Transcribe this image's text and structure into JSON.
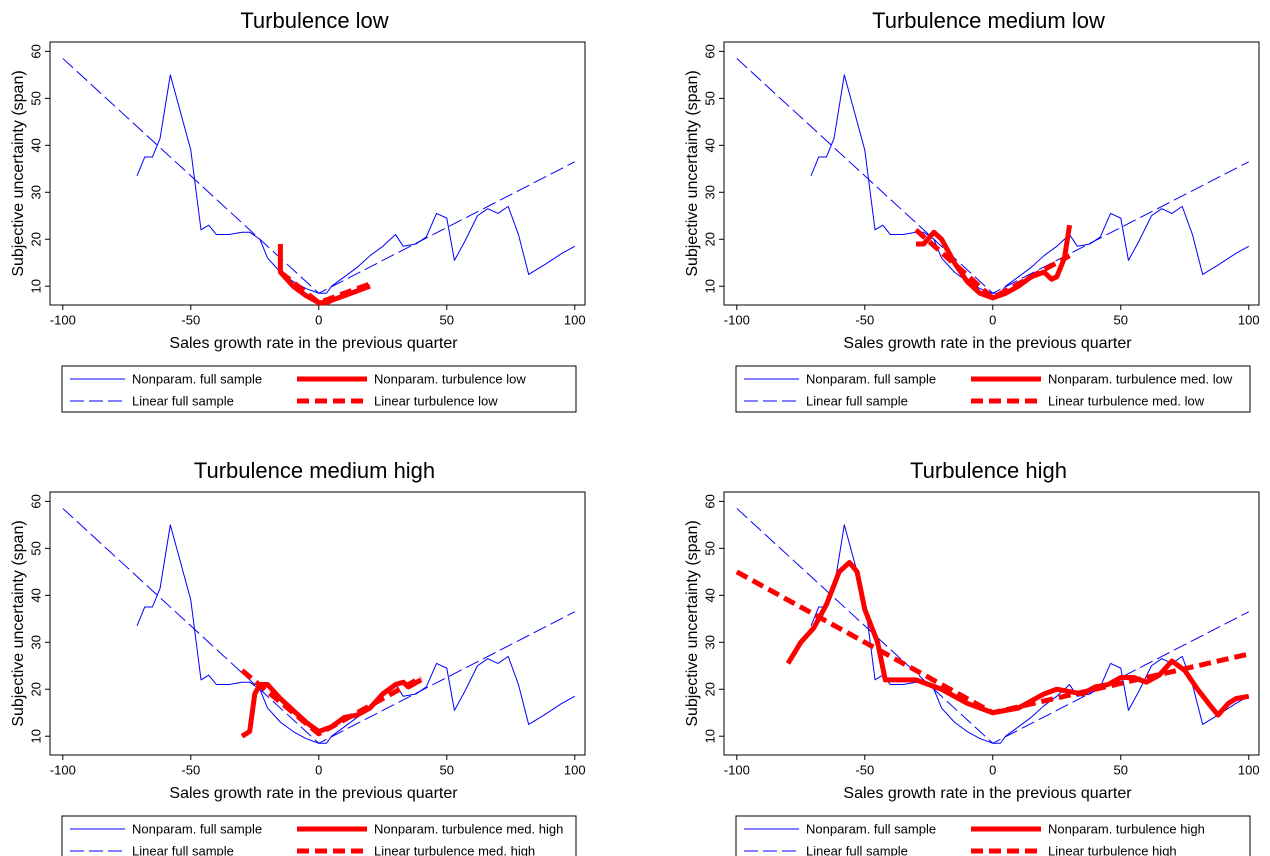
{
  "chart_data": [
    {
      "type": "line",
      "title": "Turbulence low",
      "x_label": "Sales growth rate in the previous quarter",
      "y_label": "Subjective uncertainty (span)",
      "xlim": [
        -105,
        104
      ],
      "ylim": [
        6,
        62
      ],
      "xticks": [
        -100,
        -50,
        0,
        50,
        100
      ],
      "yticks": [
        10,
        20,
        30,
        40,
        50,
        60
      ],
      "series": [
        {
          "name": "Nonparam. full sample",
          "color": "#0000ff",
          "width": 1,
          "dash": "none",
          "x": [
            -71,
            -68,
            -65,
            -62,
            -58,
            -55,
            -53,
            -50,
            -46,
            -43,
            -40,
            -35,
            -30,
            -27,
            -23,
            -20,
            -15,
            -10,
            -5,
            0,
            3,
            5,
            10,
            15,
            20,
            25,
            30,
            33,
            38,
            42,
            46,
            50,
            53,
            57,
            62,
            66,
            70,
            74,
            78,
            82,
            88,
            95,
            100
          ],
          "values": [
            33.5,
            37.5,
            37.5,
            41.5,
            55,
            49,
            45,
            39,
            22,
            23,
            21,
            21,
            21.5,
            21.5,
            20,
            16,
            13,
            11,
            9.5,
            8.5,
            8.5,
            10,
            12,
            14,
            16.5,
            18.5,
            21,
            18.5,
            19,
            20.5,
            25.5,
            24.5,
            15.5,
            19.5,
            25,
            26.5,
            25.5,
            27,
            21,
            12.5,
            14.5,
            17,
            18.5
          ]
        },
        {
          "name": "Linear full sample",
          "color": "#0000ff",
          "width": 1,
          "dash": "14,5",
          "x": [
            -100,
            0,
            100
          ],
          "values": [
            58.5,
            8.5,
            36.5
          ]
        },
        {
          "name": "Nonparam. turbulence low",
          "color": "#ff0000",
          "width": 5,
          "dash": "none",
          "x": [
            -15,
            -15,
            -10,
            -5,
            0,
            3,
            5,
            10,
            15,
            20
          ],
          "values": [
            19,
            13,
            10,
            8,
            6.5,
            6.5,
            7,
            8,
            9,
            10
          ]
        },
        {
          "name": "Linear turbulence low",
          "color": "#ff0000",
          "width": 5,
          "dash": "12,6",
          "x": [
            -15,
            0,
            20
          ],
          "values": [
            13,
            6.5,
            10.5
          ]
        }
      ]
    },
    {
      "type": "line",
      "title": "Turbulence medium low",
      "x_label": "Sales growth rate in the previous quarter",
      "y_label": "Subjective uncertainty (span)",
      "xlim": [
        -105,
        104
      ],
      "ylim": [
        6,
        62
      ],
      "xticks": [
        -100,
        -50,
        0,
        50,
        100
      ],
      "yticks": [
        10,
        20,
        30,
        40,
        50,
        60
      ],
      "series": [
        {
          "name": "Nonparam. full sample",
          "color": "#0000ff",
          "width": 1,
          "dash": "none",
          "x": [
            -71,
            -68,
            -65,
            -62,
            -58,
            -55,
            -53,
            -50,
            -46,
            -43,
            -40,
            -35,
            -30,
            -27,
            -23,
            -20,
            -15,
            -10,
            -5,
            0,
            3,
            5,
            10,
            15,
            20,
            25,
            30,
            33,
            38,
            42,
            46,
            50,
            53,
            57,
            62,
            66,
            70,
            74,
            78,
            82,
            88,
            95,
            100
          ],
          "values": [
            33.5,
            37.5,
            37.5,
            41.5,
            55,
            49,
            45,
            39,
            22,
            23,
            21,
            21,
            21.5,
            21.5,
            20,
            16,
            13,
            11,
            9.5,
            8.5,
            8.5,
            10,
            12,
            14,
            16.5,
            18.5,
            21,
            18.5,
            19,
            20.5,
            25.5,
            24.5,
            15.5,
            19.5,
            25,
            26.5,
            25.5,
            27,
            21,
            12.5,
            14.5,
            17,
            18.5
          ]
        },
        {
          "name": "Linear full sample",
          "color": "#0000ff",
          "width": 1,
          "dash": "14,5",
          "x": [
            -100,
            0,
            100
          ],
          "values": [
            58.5,
            8.5,
            36.5
          ]
        },
        {
          "name": "Nonparam. turbulence med. low",
          "color": "#ff0000",
          "width": 5,
          "dash": "none",
          "x": [
            -30,
            -27,
            -23,
            -20,
            -15,
            -10,
            -5,
            0,
            5,
            10,
            15,
            20,
            23,
            25,
            28,
            30
          ],
          "values": [
            19,
            19,
            21.5,
            20,
            15,
            11,
            8.5,
            7.5,
            8.5,
            10,
            12,
            13,
            11.5,
            12,
            16,
            23
          ]
        },
        {
          "name": "Linear turbulence med. low",
          "color": "#ff0000",
          "width": 5,
          "dash": "12,6",
          "x": [
            -30,
            0,
            30
          ],
          "values": [
            22,
            7.5,
            16.5
          ]
        }
      ]
    },
    {
      "type": "line",
      "title": "Turbulence medium high",
      "x_label": "Sales growth rate in the previous quarter",
      "y_label": "Subjective uncertainty (span)",
      "xlim": [
        -105,
        104
      ],
      "ylim": [
        6,
        62
      ],
      "xticks": [
        -100,
        -50,
        0,
        50,
        100
      ],
      "yticks": [
        10,
        20,
        30,
        40,
        50,
        60
      ],
      "series": [
        {
          "name": "Nonparam. full sample",
          "color": "#0000ff",
          "width": 1,
          "dash": "none",
          "x": [
            -71,
            -68,
            -65,
            -62,
            -58,
            -55,
            -53,
            -50,
            -46,
            -43,
            -40,
            -35,
            -30,
            -27,
            -23,
            -20,
            -15,
            -10,
            -5,
            0,
            3,
            5,
            10,
            15,
            20,
            25,
            30,
            33,
            38,
            42,
            46,
            50,
            53,
            57,
            62,
            66,
            70,
            74,
            78,
            82,
            88,
            95,
            100
          ],
          "values": [
            33.5,
            37.5,
            37.5,
            41.5,
            55,
            49,
            45,
            39,
            22,
            23,
            21,
            21,
            21.5,
            21.5,
            20,
            16,
            13,
            11,
            9.5,
            8.5,
            8.5,
            10,
            12,
            14,
            16.5,
            18.5,
            21,
            18.5,
            19,
            20.5,
            25.5,
            24.5,
            15.5,
            19.5,
            25,
            26.5,
            25.5,
            27,
            21,
            12.5,
            14.5,
            17,
            18.5
          ]
        },
        {
          "name": "Linear full sample",
          "color": "#0000ff",
          "width": 1,
          "dash": "14,5",
          "x": [
            -100,
            0,
            100
          ],
          "values": [
            58.5,
            8.5,
            36.5
          ]
        },
        {
          "name": "Nonparam. turbulence med. high",
          "color": "#ff0000",
          "width": 5,
          "dash": "none",
          "x": [
            -30,
            -27,
            -25,
            -23,
            -20,
            -15,
            -10,
            -5,
            0,
            5,
            10,
            15,
            20,
            25,
            30,
            33,
            35,
            40
          ],
          "values": [
            10,
            11,
            19,
            21,
            21,
            18,
            15.5,
            13,
            11,
            12,
            14,
            14.5,
            16,
            19,
            21,
            21.5,
            20.5,
            22
          ]
        },
        {
          "name": "Linear turbulence med. high",
          "color": "#ff0000",
          "width": 5,
          "dash": "12,6",
          "x": [
            -30,
            0,
            40
          ],
          "values": [
            24,
            10.5,
            22.5
          ]
        }
      ]
    },
    {
      "type": "line",
      "title": "Turbulence high",
      "x_label": "Sales growth rate in the previous quarter",
      "y_label": "Subjective uncertainty (span)",
      "xlim": [
        -105,
        104
      ],
      "ylim": [
        6,
        62
      ],
      "xticks": [
        -100,
        -50,
        0,
        50,
        100
      ],
      "yticks": [
        10,
        20,
        30,
        40,
        50,
        60
      ],
      "series": [
        {
          "name": "Nonparam. full sample",
          "color": "#0000ff",
          "width": 1,
          "dash": "none",
          "x": [
            -71,
            -68,
            -65,
            -62,
            -58,
            -55,
            -53,
            -50,
            -46,
            -43,
            -40,
            -35,
            -30,
            -27,
            -23,
            -20,
            -15,
            -10,
            -5,
            0,
            3,
            5,
            10,
            15,
            20,
            25,
            30,
            33,
            38,
            42,
            46,
            50,
            53,
            57,
            62,
            66,
            70,
            74,
            78,
            82,
            88,
            95,
            100
          ],
          "values": [
            33.5,
            37.5,
            37.5,
            41.5,
            55,
            49,
            45,
            39,
            22,
            23,
            21,
            21,
            21.5,
            21.5,
            20,
            16,
            13,
            11,
            9.5,
            8.5,
            8.5,
            10,
            12,
            14,
            16.5,
            18.5,
            21,
            18.5,
            19,
            20.5,
            25.5,
            24.5,
            15.5,
            19.5,
            25,
            26.5,
            25.5,
            27,
            21,
            12.5,
            14.5,
            17,
            18.5
          ]
        },
        {
          "name": "Linear full sample",
          "color": "#0000ff",
          "width": 1,
          "dash": "14,5",
          "x": [
            -100,
            0,
            100
          ],
          "values": [
            58.5,
            8.5,
            36.5
          ]
        },
        {
          "name": "Nonparam. turbulence high",
          "color": "#ff0000",
          "width": 5,
          "dash": "none",
          "x": [
            -80,
            -75,
            -70,
            -65,
            -60,
            -56,
            -53,
            -50,
            -45,
            -42,
            -35,
            -30,
            -20,
            -10,
            0,
            10,
            20,
            25,
            30,
            35,
            40,
            45,
            50,
            55,
            60,
            65,
            70,
            75,
            80,
            85,
            88,
            92,
            95,
            100
          ],
          "values": [
            25.5,
            30,
            33,
            38,
            45,
            47,
            45,
            37,
            30,
            22,
            22,
            22,
            20,
            17,
            15,
            16,
            19,
            20,
            19.5,
            19,
            20.5,
            21,
            22.5,
            22.5,
            21.5,
            23,
            26,
            24,
            20,
            16.5,
            14.5,
            17,
            18,
            18.5
          ]
        },
        {
          "name": "Linear turbulence high",
          "color": "#ff0000",
          "width": 5,
          "dash": "12,6",
          "x": [
            -100,
            0,
            100
          ],
          "values": [
            45,
            15,
            27.5
          ]
        }
      ]
    }
  ]
}
